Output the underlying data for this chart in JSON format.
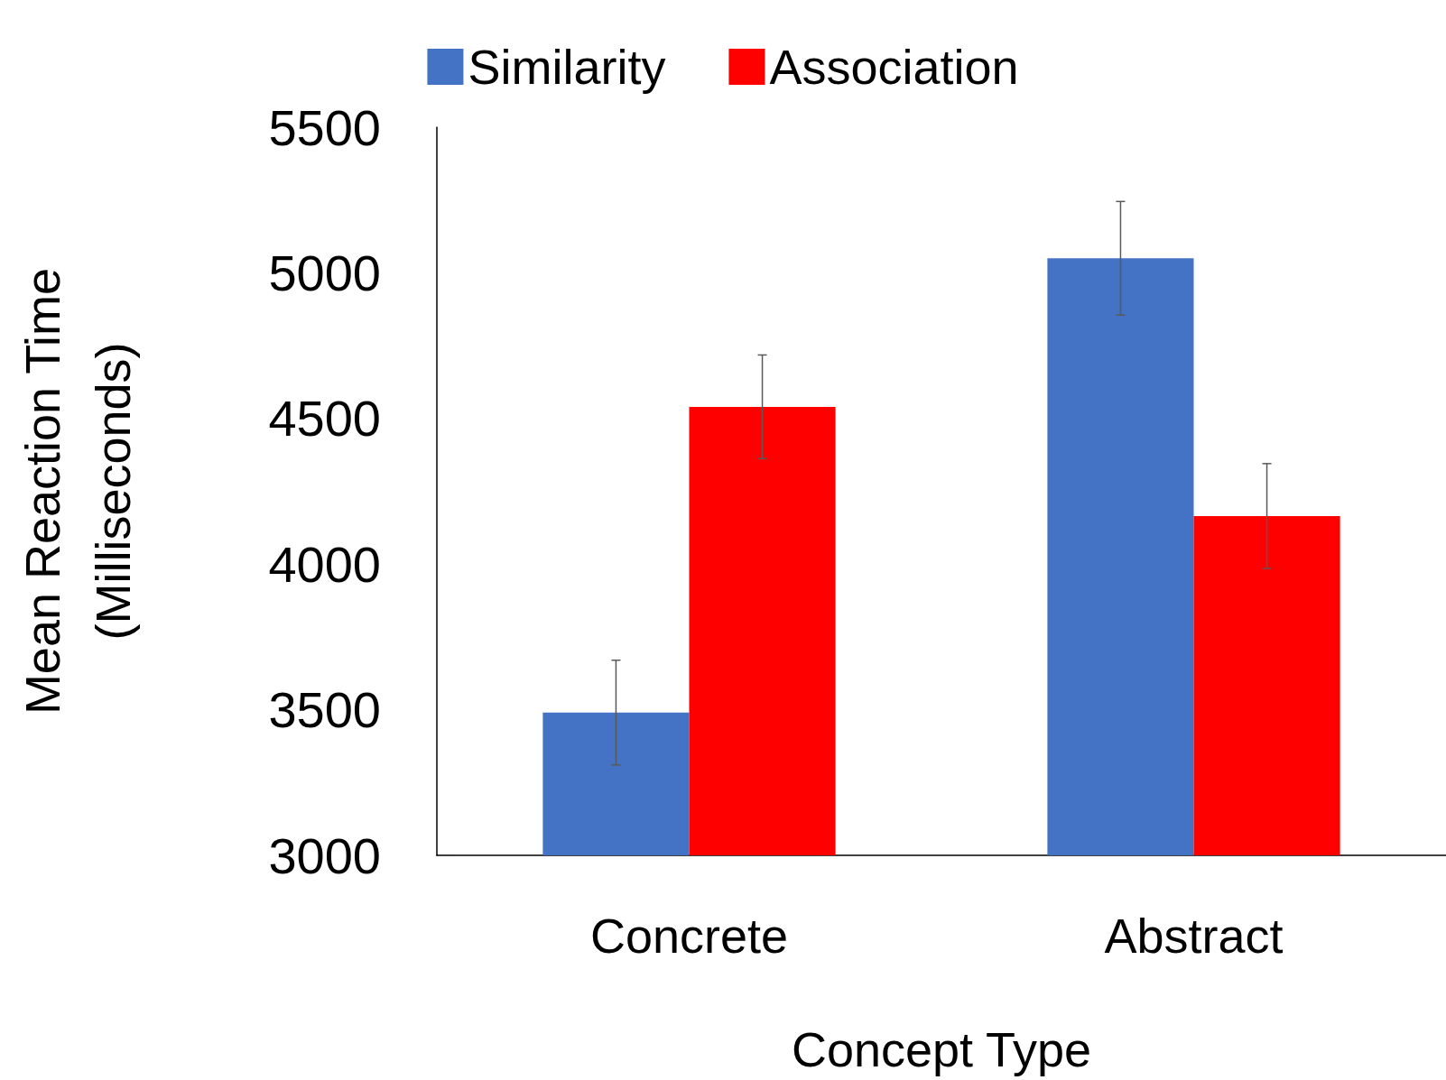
{
  "chart_data": {
    "type": "bar",
    "xlabel": "Concept Type",
    "ylabel": "Mean Reaction Time\n(Milliseconds)",
    "categories": [
      "Concrete",
      "Abstract"
    ],
    "series": [
      {
        "name": "Similarity",
        "color": "#4472c4",
        "values": [
          3490,
          5050
        ],
        "errors": [
          180,
          195
        ]
      },
      {
        "name": "Association",
        "color": "#ff0000",
        "values": [
          4540,
          4165
        ],
        "errors": [
          178,
          180
        ]
      }
    ],
    "ylim": [
      3000,
      5500
    ],
    "yticks": [
      3000,
      3500,
      4000,
      4500,
      5000,
      5500
    ],
    "grid": false,
    "legend": "top"
  }
}
